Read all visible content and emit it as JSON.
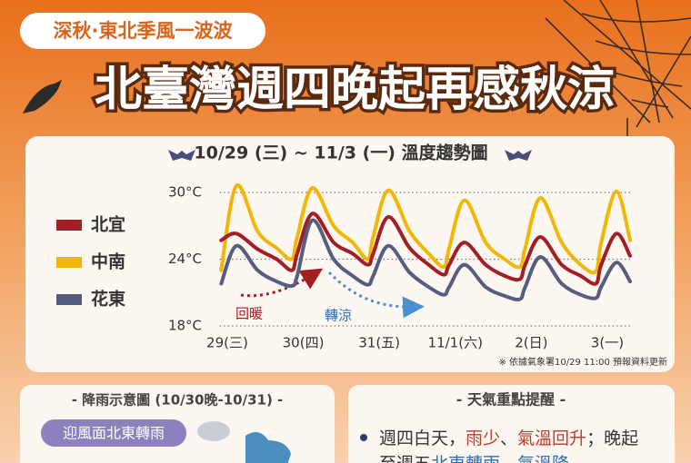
{
  "header": {
    "badge": "深秋·東北季風一波波",
    "title": "北臺灣週四晚起再感秋涼"
  },
  "chart_data": {
    "type": "line",
    "title": "10/29 (三) ~ 11/3 (一) 溫度趨勢圖",
    "x": [
      -0.08,
      0.12,
      0.4,
      0.65,
      0.85,
      0.92,
      1.12,
      1.4,
      1.65,
      1.85,
      1.92,
      2.12,
      2.4,
      2.65,
      2.85,
      2.92,
      3.12,
      3.4,
      3.65,
      3.85,
      3.92,
      4.12,
      4.4,
      4.65,
      4.85,
      4.92,
      5.12,
      5.3
    ],
    "series": [
      {
        "name": "北宜",
        "color": "#a31d25",
        "values": [
          25.7,
          26.3,
          24.9,
          24,
          23,
          24.5,
          28.1,
          25.5,
          24.5,
          23.5,
          24.5,
          27.8,
          25,
          23.5,
          22.6,
          23.5,
          25.5,
          23.5,
          22.5,
          22.2,
          23.5,
          26,
          23.5,
          22.5,
          21.8,
          23.5,
          26.3,
          24.3
        ]
      },
      {
        "name": "中南",
        "color": "#f2b705",
        "values": [
          23,
          30.6,
          26.5,
          25,
          24,
          26,
          30.4,
          27,
          25.5,
          24,
          26,
          30.2,
          26.5,
          24.5,
          23.3,
          25,
          29.3,
          25.5,
          24,
          23.3,
          25,
          29.5,
          25.5,
          23.5,
          22.9,
          25.5,
          30.1,
          25.7
        ]
      },
      {
        "name": "花東",
        "color": "#555d80",
        "values": [
          21.8,
          25.2,
          23,
          22,
          21.6,
          22.5,
          27.5,
          24,
          22.5,
          21.7,
          22.5,
          25.2,
          22.8,
          21.5,
          20.8,
          21.5,
          23.5,
          21.5,
          20.7,
          20.4,
          21.5,
          24.2,
          21.8,
          20.8,
          20.5,
          21.5,
          23.7,
          22
        ]
      }
    ],
    "xlim": [
      -0.1,
      5.3
    ],
    "xticks": [
      {
        "value": 0,
        "label": "29(三)"
      },
      {
        "value": 1,
        "label": "30(四)"
      },
      {
        "value": 2,
        "label": "31(五)"
      },
      {
        "value": 3,
        "label": "11/1(六)"
      },
      {
        "value": 4,
        "label": "2(日)"
      },
      {
        "value": 5,
        "label": "3(一)"
      }
    ],
    "ylim": [
      18,
      31
    ],
    "yticks": [
      {
        "value": 18,
        "label": "18°C"
      },
      {
        "value": 24,
        "label": "24°C"
      },
      {
        "value": 30,
        "label": "30°C"
      }
    ],
    "grid": true,
    "annotations": [
      "回暖",
      "轉涼"
    ],
    "note": "※ 依據氣象署10/29 11:00 預報資料更新"
  },
  "rain_panel": {
    "title": "- 降雨示意圖 (10/30晚-10/31) -",
    "tag": "迎風面北東轉雨"
  },
  "reminder": {
    "title": "- 天氣重點提醒 -",
    "lines": [
      [
        {
          "text": "週四白天，"
        },
        {
          "text": "雨少",
          "color": "#c0392b"
        },
        {
          "text": "、"
        },
        {
          "text": "氣溫回升",
          "color": "#c0392b"
        },
        {
          "text": "；晚起"
        }
      ],
      [
        {
          "text": "至週五"
        },
        {
          "text": "北東轉雨",
          "color": "#2a6fb5"
        },
        {
          "text": "、"
        },
        {
          "text": "氣溫降",
          "color": "#2a6fb5"
        },
        {
          "text": "。"
        }
      ]
    ]
  }
}
